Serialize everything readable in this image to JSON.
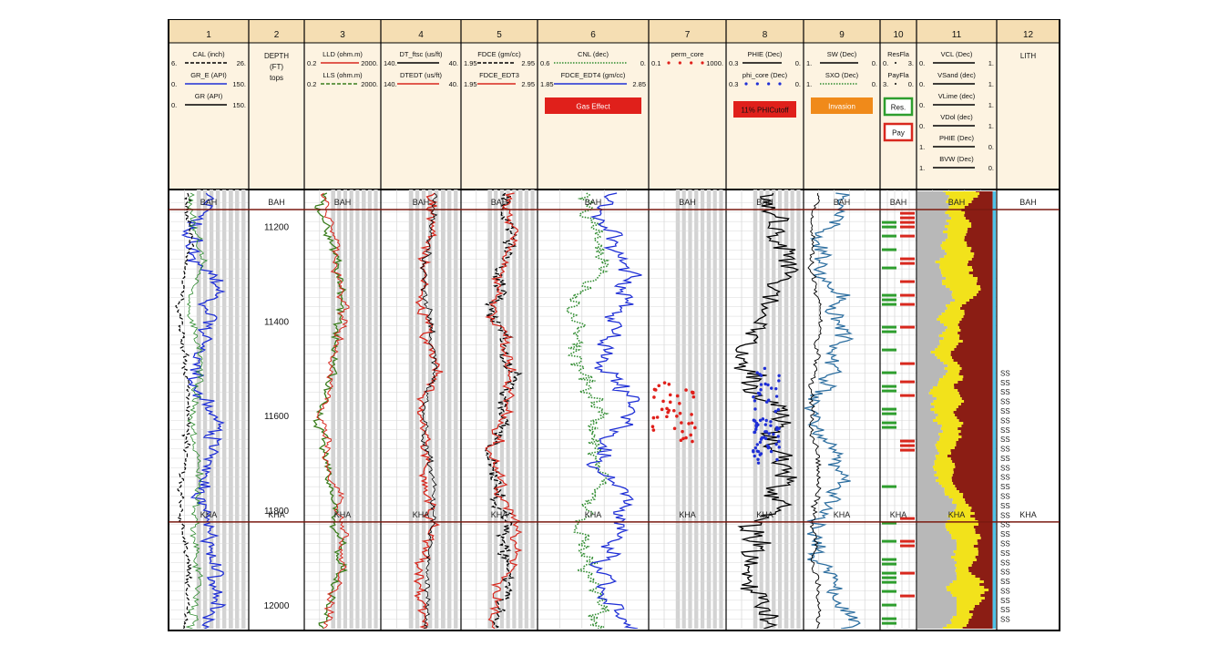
{
  "chart_data": {
    "type": "well-log",
    "title": "",
    "depth_unit": "FT",
    "depth_range": [
      11130,
      12050
    ],
    "depth_ticks": [
      11200,
      11400,
      11600,
      11800,
      12000
    ],
    "formation_tops": [
      {
        "name": "BAH",
        "depth": 11155
      },
      {
        "name": "KHA",
        "depth": 11815
      }
    ],
    "track_numbers": [
      "1",
      "2",
      "3",
      "4",
      "5",
      "6",
      "7",
      "8",
      "9",
      "10",
      "11",
      "12"
    ],
    "tracks": [
      {
        "number": "1",
        "curves": [
          {
            "name": "CAL (inch)",
            "min": "6.",
            "max": "26.",
            "color": "#000000",
            "style": "dashed"
          },
          {
            "name": "GR_E (API)",
            "min": "0.",
            "max": "150.",
            "color": "#1f2fd6",
            "style": "solid"
          },
          {
            "name": "GR (API)",
            "min": "0.",
            "max": "150.",
            "color": "#000000",
            "style": "solid"
          }
        ]
      },
      {
        "number": "2",
        "labels": [
          "DEPTH",
          "(FT)",
          "tops"
        ]
      },
      {
        "number": "3",
        "curves": [
          {
            "name": "LLD (ohm.m)",
            "min": "0.2",
            "max": "2000.",
            "color": "#d8281e",
            "style": "solid"
          },
          {
            "name": "LLS (ohm.m)",
            "min": "0.2",
            "max": "2000.",
            "color": "#3a7d1c",
            "style": "dashed"
          }
        ]
      },
      {
        "number": "4",
        "curves": [
          {
            "name": "DT_ftsc (us/ft)",
            "min": "140.",
            "max": "40.",
            "color": "#000000",
            "style": "solid"
          },
          {
            "name": "DTEDT (us/ft)",
            "min": "140.",
            "max": "40.",
            "color": "#d8281e",
            "style": "solid"
          }
        ]
      },
      {
        "number": "5",
        "curves": [
          {
            "name": "FDCE (gm/cc)",
            "min": "1.95",
            "max": "2.95",
            "color": "#000000",
            "style": "dashed"
          },
          {
            "name": "FDCE_EDT3",
            "min": "1.95",
            "max": "2.95",
            "color": "#d8281e",
            "style": "solid"
          }
        ]
      },
      {
        "number": "6",
        "curves": [
          {
            "name": "CNL (dec)",
            "min": "0.6",
            "max": "0.",
            "color": "#2e8b2e",
            "style": "dotted"
          },
          {
            "name": "FDCE_EDT4 (gm/cc)",
            "min": "1.85",
            "max": "2.85",
            "color": "#1f2fd6",
            "style": "solid"
          }
        ],
        "fill_legend": "Gas Effect",
        "fill_color": "#e0201b"
      },
      {
        "number": "7",
        "curves": [
          {
            "name": "perm_core",
            "min": "0.1",
            "max": "1000.",
            "color": "#e0201b",
            "style": "points"
          }
        ]
      },
      {
        "number": "8",
        "curves": [
          {
            "name": "PHIE (Dec)",
            "min": "0.3",
            "max": "0.",
            "color": "#000000",
            "style": "solid"
          },
          {
            "name": "phi_core (Dec)",
            "min": "0.3",
            "max": "0.",
            "color": "#1f2fd6",
            "style": "points"
          }
        ],
        "fill_legend": "11% PHICutoff",
        "fill_color": "#e0201b"
      },
      {
        "number": "9",
        "curves": [
          {
            "name": "SW (Dec)",
            "min": "1.",
            "max": "0.",
            "color": "#000000",
            "style": "solid"
          },
          {
            "name": "SXO (Dec)",
            "min": "1.",
            "max": "0.",
            "color": "#2e8b2e",
            "style": "dotted"
          }
        ],
        "fill_legend": "Invasion",
        "fill_color": "#f08a1a"
      },
      {
        "number": "10",
        "curves": [
          {
            "name": "ResFla",
            "min": "0.",
            "max": "3.",
            "color": "#000000",
            "style": "solid"
          },
          {
            "name": "PayFla",
            "min": "3.",
            "max": "0.",
            "color": "#000000",
            "style": "solid"
          }
        ],
        "flags": [
          {
            "label": "Res.",
            "color": "#2e9e2e"
          },
          {
            "label": "Pay",
            "color": "#d8281e"
          }
        ]
      },
      {
        "number": "11",
        "curves": [
          {
            "name": "VCL (Dec)",
            "min": "0.",
            "max": "1."
          },
          {
            "name": "VSand (dec)",
            "min": "0.",
            "max": "1."
          },
          {
            "name": "VLime (dec)",
            "min": "0.",
            "max": "1."
          },
          {
            "name": "VDol (dec)",
            "min": "0.",
            "max": "1."
          },
          {
            "name": "PHIE (Dec)",
            "min": "1.",
            "max": "0."
          },
          {
            "name": "BVW (Dec)",
            "min": "1.",
            "max": "0."
          }
        ]
      },
      {
        "number": "12",
        "labels": [
          "LITH"
        ],
        "lith_label": "SS",
        "lith_depths": [
          11510,
          11530,
          11550,
          11570,
          11590,
          11610,
          11630,
          11650,
          11670,
          11690,
          11710,
          11730,
          11750,
          11770,
          11790,
          11810,
          11830,
          11850,
          11870,
          11890,
          11910,
          11930,
          11950,
          11970,
          11990,
          12010,
          12030
        ]
      }
    ]
  }
}
